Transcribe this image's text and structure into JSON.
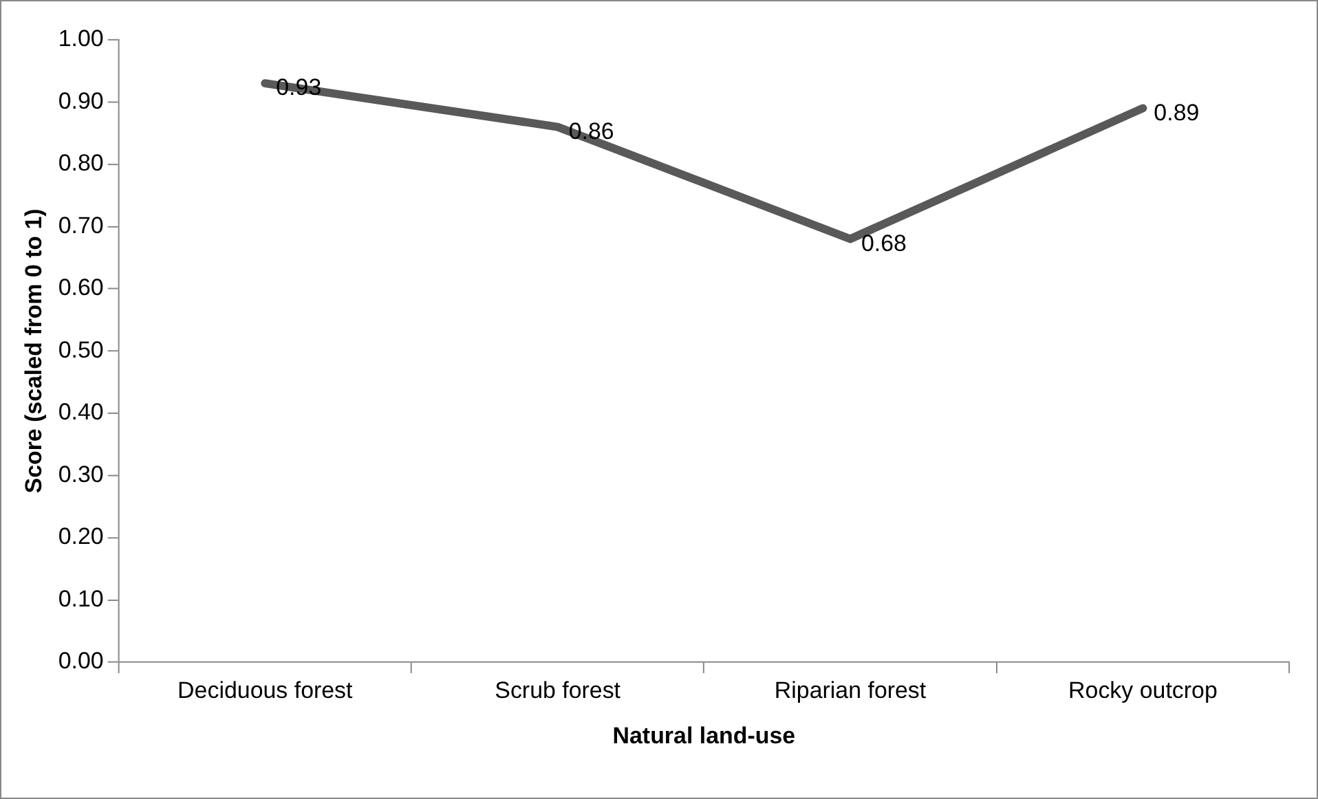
{
  "chart_data": {
    "type": "line",
    "xlabel": "Natural land-use",
    "ylabel": "Score (scaled from 0 to 1)",
    "categories": [
      "Deciduous forest",
      "Scrub forest",
      "Riparian forest",
      "Rocky outcrop"
    ],
    "series": [
      {
        "color": "#595959",
        "values": [
          0.93,
          0.86,
          0.68,
          0.89
        ]
      }
    ],
    "ylim": [
      0,
      1
    ],
    "yticks": [
      {
        "value": 0,
        "label": "0.00"
      },
      {
        "value": 0.1,
        "label": "0.10"
      },
      {
        "value": 0.2,
        "label": "0.20"
      },
      {
        "value": 0.3,
        "label": "0.30"
      },
      {
        "value": 0.4,
        "label": "0.40"
      },
      {
        "value": 0.5,
        "label": "0.50"
      },
      {
        "value": 0.6,
        "label": "0.60"
      },
      {
        "value": 0.7,
        "label": "0.70"
      },
      {
        "value": 0.8,
        "label": "0.80"
      },
      {
        "value": 0.9,
        "label": "0.90"
      },
      {
        "value": 1,
        "label": "1.00"
      }
    ],
    "grid": false,
    "legend": false,
    "marker": "none",
    "line_style": "solid",
    "data_labels": true
  }
}
